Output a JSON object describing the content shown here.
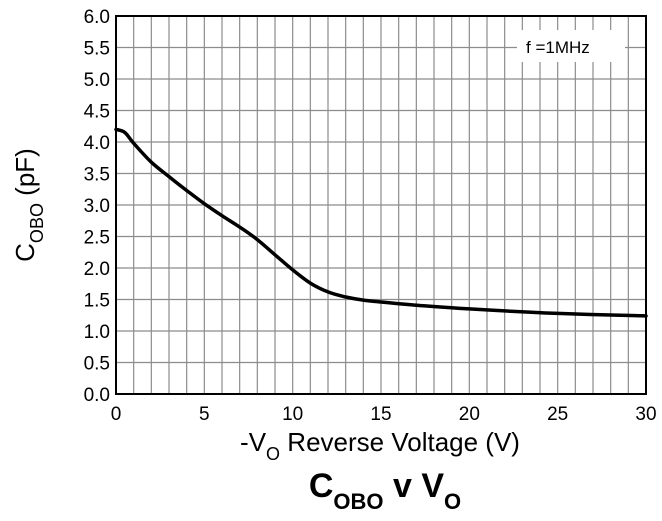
{
  "chart_data": {
    "type": "line",
    "xlabel": {
      "main": "-V",
      "sub": "O",
      "rest": " Reverse Voltage (V)"
    },
    "ylabel": {
      "main": "C",
      "sub": "OBO",
      "rest": " (pF)"
    },
    "caption": {
      "c": "C",
      "csub": "OBO",
      "mid": " v V",
      "vsub": "O"
    },
    "annotation": "f =1MHz",
    "xlim": [
      0,
      30
    ],
    "ylim": [
      0,
      6
    ],
    "x_ticks": [
      "0",
      "5",
      "10",
      "15",
      "20",
      "25",
      "30"
    ],
    "y_ticks": [
      "0.0",
      "0.5",
      "1.0",
      "1.5",
      "2.0",
      "2.5",
      "3.0",
      "3.5",
      "4.0",
      "4.5",
      "5.0",
      "5.5",
      "6.0"
    ],
    "grid": true,
    "series": [
      {
        "color": "#000000",
        "x": [
          0,
          0.5,
          1,
          2,
          3,
          4,
          5,
          6,
          7,
          8,
          9,
          10,
          11,
          12,
          13,
          14,
          15,
          17,
          20,
          25,
          30
        ],
        "y": [
          4.2,
          4.15,
          3.98,
          3.68,
          3.45,
          3.23,
          3.02,
          2.83,
          2.65,
          2.45,
          2.21,
          1.97,
          1.76,
          1.62,
          1.54,
          1.49,
          1.46,
          1.41,
          1.35,
          1.28,
          1.24
        ]
      }
    ]
  }
}
